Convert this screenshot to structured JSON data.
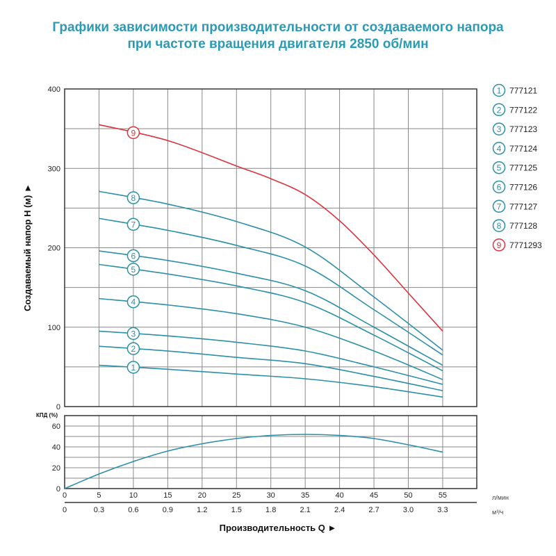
{
  "chart_data": [
    {
      "type": "line",
      "title": [
        "Графики зависимости производительности от создаваемого напора",
        "при частоте вращения двигателя 2850 об/мин"
      ],
      "ylabel": "Создаваемый напор H (м) ►",
      "ylim": [
        0,
        400
      ],
      "yticks": [
        0,
        100,
        200,
        300,
        400
      ],
      "xlim": [
        0,
        60
      ],
      "grid": true,
      "legend_position": "right",
      "series": [
        {
          "name": "777121",
          "marker": "1",
          "color": "#2b8fa8",
          "points": [
            [
              5,
              52
            ],
            [
              15,
              47
            ],
            [
              25,
              41
            ],
            [
              35,
              35
            ],
            [
              45,
              25
            ],
            [
              55,
              12
            ]
          ]
        },
        {
          "name": "777122",
          "marker": "2",
          "color": "#2b8fa8",
          "points": [
            [
              5,
              76
            ],
            [
              15,
              70
            ],
            [
              25,
              62
            ],
            [
              35,
              54
            ],
            [
              45,
              38
            ],
            [
              55,
              20
            ]
          ]
        },
        {
          "name": "777123",
          "marker": "3",
          "color": "#2b8fa8",
          "points": [
            [
              5,
              95
            ],
            [
              15,
              89
            ],
            [
              25,
              81
            ],
            [
              35,
              70
            ],
            [
              45,
              50
            ],
            [
              55,
              28
            ]
          ]
        },
        {
          "name": "777124",
          "marker": "4",
          "color": "#2b8fa8",
          "points": [
            [
              5,
              136
            ],
            [
              15,
              128
            ],
            [
              25,
              117
            ],
            [
              35,
              100
            ],
            [
              45,
              70
            ],
            [
              55,
              34
            ]
          ]
        },
        {
          "name": "777125",
          "marker": "5",
          "color": "#2b8fa8",
          "points": [
            [
              5,
              179
            ],
            [
              15,
              167
            ],
            [
              25,
              152
            ],
            [
              35,
              131
            ],
            [
              45,
              90
            ],
            [
              55,
              45
            ]
          ]
        },
        {
          "name": "777126",
          "marker": "6",
          "color": "#2b8fa8",
          "points": [
            [
              5,
              196
            ],
            [
              15,
              184
            ],
            [
              25,
              168
            ],
            [
              35,
              146
            ],
            [
              45,
              100
            ],
            [
              55,
              52
            ]
          ]
        },
        {
          "name": "777127",
          "marker": "7",
          "color": "#2b8fa8",
          "points": [
            [
              5,
              237
            ],
            [
              15,
              222
            ],
            [
              25,
              203
            ],
            [
              35,
              177
            ],
            [
              45,
              122
            ],
            [
              55,
              65
            ]
          ]
        },
        {
          "name": "777128",
          "marker": "8",
          "color": "#2b8fa8",
          "points": [
            [
              5,
              271
            ],
            [
              15,
              255
            ],
            [
              25,
              233
            ],
            [
              35,
              201
            ],
            [
              45,
              138
            ],
            [
              55,
              71
            ]
          ]
        },
        {
          "name": "7771293",
          "marker": "9",
          "color": "#d9333f",
          "points": [
            [
              5,
              355
            ],
            [
              15,
              335
            ],
            [
              25,
              303
            ],
            [
              30,
              287
            ],
            [
              35,
              267
            ],
            [
              40,
              234
            ],
            [
              45,
              191
            ],
            [
              50,
              143
            ],
            [
              55,
              95
            ]
          ]
        }
      ]
    },
    {
      "type": "line",
      "ylabel": "КПД (%)",
      "ylim": [
        0,
        70
      ],
      "yticks": [
        0,
        20,
        40,
        60
      ],
      "xlabel": "Производительность Q ►",
      "x_unit_1": "л/мин",
      "x_unit_2": "м³/ч",
      "xticks_lmin": [
        "0",
        "5",
        "10",
        "15",
        "20",
        "25",
        "30",
        "35",
        "40",
        "45",
        "50",
        "55"
      ],
      "xticks_m3h": [
        "0",
        "0.3",
        "0.6",
        "0.9",
        "1.2",
        "1.5",
        "1.8",
        "2.1",
        "2.4",
        "2.7",
        "3.0",
        "3.3"
      ],
      "grid": true,
      "series": [
        {
          "color": "#2b8fa8",
          "points": [
            [
              0,
              0
            ],
            [
              5,
              14
            ],
            [
              10,
              26
            ],
            [
              15,
              36
            ],
            [
              20,
              43
            ],
            [
              25,
              48
            ],
            [
              30,
              51
            ],
            [
              35,
              52
            ],
            [
              40,
              51
            ],
            [
              45,
              48
            ],
            [
              50,
              42
            ],
            [
              55,
              35
            ]
          ]
        }
      ]
    }
  ]
}
